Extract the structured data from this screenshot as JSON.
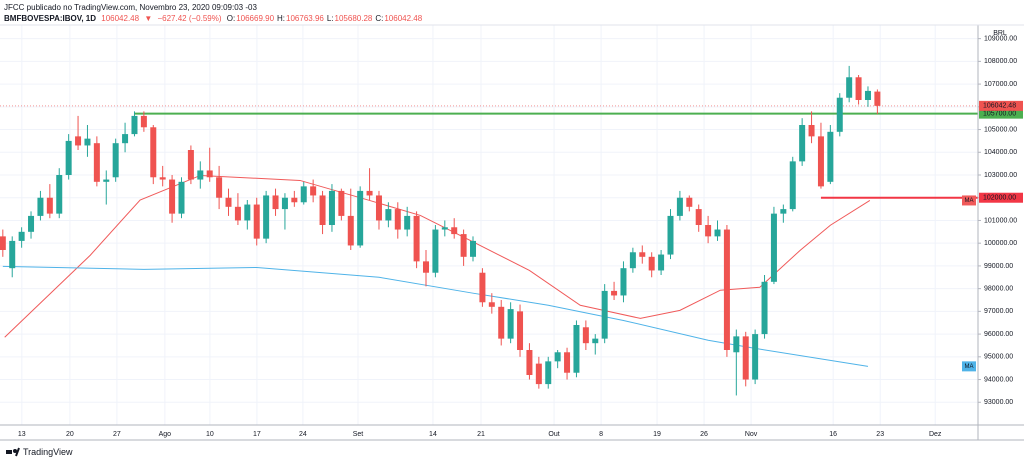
{
  "header": {
    "publisher": "JFCC publicado no TradingView.com, Novembro 23, 2020 09:09:03 -03",
    "symbol": "BMFBOVESPA:IBOV, 1D",
    "arrow": "▼",
    "change": "−627.42 (−0.59%)",
    "ohlc_labels": [
      "O:",
      "H:",
      "L:",
      "C:"
    ],
    "ohlc_values": [
      "106669.90",
      "106763.96",
      "105680.28",
      "106042.48"
    ]
  },
  "footer": {
    "brand": "TradingView"
  },
  "chart_data": {
    "type": "candlestick",
    "currency": "BRL",
    "up_color": "#26a69a",
    "down_color": "#ef5350",
    "candles": {
      "open": [
        100300,
        98900,
        100100,
        100500,
        101200,
        102000,
        101300,
        103000,
        104700,
        104300,
        104400,
        102700,
        102900,
        104400,
        104800,
        105600,
        105100,
        102900,
        102800,
        101300,
        104100,
        102800,
        103200,
        102900,
        102000,
        101600,
        101000,
        101700,
        100200,
        102100,
        101500,
        102000,
        101800,
        102500,
        102100,
        100800,
        102300,
        101200,
        99900,
        102300,
        102100,
        101000,
        101500,
        100600,
        101200,
        99200,
        98700,
        100600,
        100700,
        100400,
        99400,
        98700,
        97400,
        97200,
        95800,
        97000,
        95300,
        94700,
        93800,
        94800,
        95200,
        94300,
        96300,
        95600,
        95800,
        97900,
        97700,
        98900,
        99600,
        99400,
        98800,
        99500,
        101200,
        102000,
        101500,
        100800,
        100300,
        100600,
        95200,
        95900,
        94000,
        96000,
        98300,
        101300,
        101500,
        103600,
        105200,
        104700,
        102700,
        104900,
        106400,
        107300,
        106300,
        106669.9
      ],
      "high": [
        100600,
        100300,
        100700,
        101400,
        102300,
        102600,
        103300,
        104800,
        105600,
        105200,
        104700,
        103200,
        104600,
        105300,
        105800,
        105800,
        105200,
        103400,
        103000,
        102900,
        104300,
        103600,
        104200,
        103400,
        102400,
        102200,
        101900,
        102000,
        102300,
        102400,
        102200,
        102300,
        102700,
        102800,
        102300,
        102600,
        102400,
        102400,
        102500,
        103300,
        102300,
        101800,
        101800,
        101600,
        101400,
        99700,
        100800,
        101000,
        101100,
        100600,
        100300,
        98900,
        97800,
        97500,
        97400,
        97300,
        95600,
        95000,
        95000,
        95300,
        95400,
        96600,
        96600,
        96000,
        98200,
        98300,
        99200,
        99800,
        99900,
        99600,
        99700,
        101500,
        102300,
        102100,
        101700,
        101200,
        101000,
        100800,
        96200,
        96100,
        96200,
        98600,
        101600,
        101700,
        103800,
        105500,
        105800,
        105300,
        105200,
        106600,
        107800,
        107400,
        106900,
        106763.96
      ],
      "low": [
        99400,
        98500,
        99800,
        100200,
        101000,
        101100,
        101100,
        102800,
        104100,
        103800,
        102500,
        101700,
        102700,
        104000,
        104700,
        104900,
        102600,
        102500,
        100900,
        101100,
        102600,
        102400,
        102700,
        101500,
        101200,
        100800,
        100600,
        99900,
        100000,
        101200,
        100600,
        101600,
        101700,
        101800,
        100400,
        100500,
        101000,
        99700,
        99800,
        101900,
        100600,
        100700,
        100200,
        100300,
        98900,
        98100,
        98500,
        100300,
        100200,
        99000,
        99200,
        97200,
        96900,
        95500,
        95600,
        95000,
        94000,
        93600,
        93600,
        94500,
        94000,
        94100,
        95300,
        95100,
        95600,
        97500,
        97400,
        98700,
        99100,
        98500,
        98600,
        99300,
        101000,
        101400,
        100500,
        100000,
        100100,
        95000,
        93300,
        93700,
        93800,
        95800,
        98200,
        100900,
        101400,
        103400,
        104400,
        102400,
        102600,
        104700,
        106200,
        106100,
        106000,
        105680.28
      ],
      "close": [
        99700,
        100100,
        100500,
        101200,
        102000,
        101300,
        103000,
        104500,
        104300,
        104600,
        102700,
        102800,
        104400,
        104800,
        105600,
        105100,
        102900,
        102800,
        101300,
        102700,
        102800,
        103200,
        102900,
        102000,
        101600,
        101000,
        101700,
        100200,
        102100,
        101500,
        102000,
        101800,
        102500,
        102100,
        100800,
        102300,
        101200,
        99900,
        102300,
        102100,
        101000,
        101500,
        100600,
        101200,
        99200,
        98700,
        100600,
        100700,
        100400,
        99400,
        100100,
        97400,
        97200,
        95800,
        97100,
        95300,
        94200,
        93800,
        94800,
        95200,
        94300,
        96400,
        95600,
        95800,
        97900,
        97700,
        98900,
        99600,
        99400,
        98800,
        99500,
        101200,
        102000,
        101600,
        100800,
        100300,
        100600,
        95300,
        95900,
        94000,
        96000,
        98300,
        101300,
        101500,
        103600,
        105200,
        104700,
        102500,
        104900,
        106400,
        107300,
        106300,
        106700,
        106042.48
      ]
    },
    "series": [
      {
        "name": "MA",
        "color": "#f05a5a",
        "x": [
          0.2,
          9.3,
          14.6,
          21,
          31.6,
          39,
          44.4,
          49.7,
          56,
          61.4,
          67.8,
          72,
          76.3,
          80.5,
          84.8,
          88,
          92.2
        ],
        "values": [
          95860,
          99470,
          101900,
          102980,
          102760,
          101880,
          101220,
          100120,
          98800,
          97270,
          96690,
          97045,
          97930,
          98060,
          99690,
          100790,
          101880
        ]
      },
      {
        "name": "MA",
        "color": "#4fb3e8",
        "x": [
          0,
          15,
          27,
          40,
          50,
          58,
          66,
          75,
          80,
          92
        ],
        "values": [
          98980,
          98850,
          98930,
          98500,
          97800,
          97270,
          96600,
          95730,
          95370,
          94580
        ]
      }
    ],
    "levels": [
      {
        "value": 105700,
        "label": "105700.00",
        "color": "#4caf50",
        "x0": 14
      },
      {
        "value": 102000,
        "label": "102000.00",
        "color": "#f23645",
        "x0": 87
      }
    ],
    "last_price": {
      "value": 106042.48,
      "label": "106042.48",
      "color": "#ef5350"
    },
    "xlim": [
      -0.3,
      103.7
    ],
    "ylim": [
      92000,
      109600
    ],
    "yticks": [
      {
        "value": 93000,
        "label": "93000.00"
      },
      {
        "value": 94000,
        "label": "94000.00"
      },
      {
        "value": 95000,
        "label": "95000.00"
      },
      {
        "value": 96000,
        "label": "96000.00"
      },
      {
        "value": 97000,
        "label": "97000.00"
      },
      {
        "value": 98000,
        "label": "98000.00"
      },
      {
        "value": 99000,
        "label": "99000.00"
      },
      {
        "value": 100000,
        "label": "100000.00"
      },
      {
        "value": 101000,
        "label": "101000.00"
      },
      {
        "value": 102000,
        "label": "102000.00"
      },
      {
        "value": 103000,
        "label": "103000.00"
      },
      {
        "value": 104000,
        "label": "104000.00"
      },
      {
        "value": 105000,
        "label": "105000.00"
      },
      {
        "value": 106000,
        "label": "106000.00"
      },
      {
        "value": 107000,
        "label": "107000.00"
      },
      {
        "value": 108000,
        "label": "108000.00"
      },
      {
        "value": 109000,
        "label": "109000.00"
      }
    ],
    "xticks": [
      {
        "value": 2.02,
        "label": "13"
      },
      {
        "value": 7.13,
        "label": "20"
      },
      {
        "value": 12.13,
        "label": "27"
      },
      {
        "value": 17.23,
        "label": "Ago"
      },
      {
        "value": 22.02,
        "label": "10"
      },
      {
        "value": 27.02,
        "label": "17"
      },
      {
        "value": 31.91,
        "label": "24"
      },
      {
        "value": 37.77,
        "label": "Set"
      },
      {
        "value": 45.74,
        "label": "14"
      },
      {
        "value": 50.85,
        "label": "21"
      },
      {
        "value": 58.62,
        "label": "Out"
      },
      {
        "value": 63.62,
        "label": "8"
      },
      {
        "value": 69.57,
        "label": "19"
      },
      {
        "value": 74.57,
        "label": "26"
      },
      {
        "value": 79.57,
        "label": "Nov"
      },
      {
        "value": 88.3,
        "label": "16"
      },
      {
        "value": 93.3,
        "label": "23"
      },
      {
        "value": 99.15,
        "label": "Dez"
      }
    ],
    "grid": true
  }
}
